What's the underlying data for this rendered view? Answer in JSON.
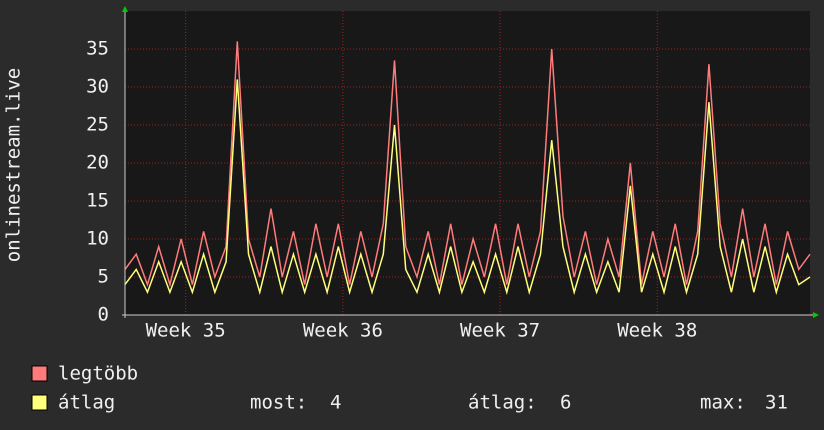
{
  "chart_data": {
    "type": "line",
    "y_axis_label": "onlinestream.live",
    "x": [
      0,
      0.5,
      1,
      1.5,
      2,
      2.5,
      3,
      3.5,
      4,
      4.5,
      5,
      5.5,
      6,
      6.5,
      7,
      7.5,
      8,
      8.5,
      9,
      9.5,
      10,
      10.5,
      11,
      11.5,
      12,
      12.5,
      13,
      13.5,
      14,
      14.5,
      15,
      15.5,
      16,
      16.5,
      17,
      17.5,
      18,
      18.5,
      19,
      19.5,
      20,
      20.5,
      21,
      21.5,
      22,
      22.5,
      23,
      23.5,
      24,
      24.5,
      25,
      25.5,
      26,
      26.5,
      27,
      27.5,
      28,
      28.5,
      29,
      29.5,
      30,
      30.5
    ],
    "series": [
      {
        "name": "legtöbb",
        "color": "#ff7b7b",
        "values": [
          6,
          8,
          4,
          9,
          4,
          10,
          4,
          11,
          5,
          9,
          36,
          10,
          5,
          14,
          5,
          11,
          4,
          12,
          5,
          12,
          4,
          11,
          5,
          12,
          33.5,
          9,
          5,
          11,
          4,
          12,
          4,
          10,
          5,
          12,
          4,
          12,
          5,
          11,
          35,
          13,
          5,
          11,
          4,
          10,
          5,
          20,
          4,
          11,
          5,
          12,
          4,
          11,
          33,
          12,
          5,
          14,
          5,
          12,
          4,
          11,
          6,
          8
        ]
      },
      {
        "name": "átlag",
        "color": "#ffff7b",
        "values": [
          4,
          6,
          3,
          7,
          3,
          7,
          3,
          8,
          3,
          7,
          31,
          8,
          3,
          9,
          3,
          8,
          3,
          8,
          3,
          9,
          3,
          8,
          3,
          8,
          25,
          6,
          3,
          8,
          3,
          9,
          3,
          7,
          3,
          8,
          3,
          9,
          3,
          8,
          23,
          9,
          3,
          8,
          3,
          7,
          3,
          17,
          3,
          8,
          3,
          9,
          3,
          8,
          28,
          9,
          3,
          10,
          3,
          9,
          3,
          8,
          4,
          5
        ]
      }
    ],
    "xlim": [
      0,
      30.5
    ],
    "xticks": [
      {
        "value": 2.7,
        "label": "Week 35"
      },
      {
        "value": 9.7,
        "label": "Week 36"
      },
      {
        "value": 16.7,
        "label": "Week 37"
      },
      {
        "value": 23.7,
        "label": "Week 38"
      }
    ],
    "ylim": [
      0,
      40
    ],
    "yticks": [
      0,
      5,
      10,
      15,
      20,
      25,
      30,
      35
    ],
    "grid": true,
    "stats": [
      {
        "label": "most:",
        "value": 4
      },
      {
        "label": "átlag:",
        "value": 6
      },
      {
        "label": "max:",
        "value": 31
      }
    ]
  }
}
